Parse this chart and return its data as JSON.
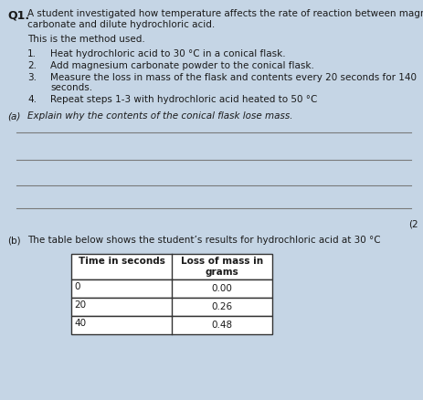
{
  "background_color": "#c5d5e5",
  "question_number": "Q1.",
  "intro_line1": "A student investigated how temperature affects the rate of reaction between magnesium",
  "intro_line2": "carbonate and dilute hydrochloric acid.",
  "method_header": "This is the method used.",
  "step1": "Heat hydrochloric acid to 30 °C in a conical flask.",
  "step2": "Add magnesium carbonate powder to the conical flask.",
  "step3a": "Measure the loss in mass of the flask and contents every 20 seconds for 140",
  "step3b": "seconds.",
  "step4": "Repeat steps 1-3 with hydrochloric acid heated to 50 °C",
  "part_a_label": "(a)",
  "part_a_text": "Explain why the contents of the conical flask lose mass.",
  "marks_label": "(2",
  "part_b_label": "(b)",
  "part_b_text": "The table below shows the student’s results for hydrochloric acid at 30 °C",
  "table_col1_header": "Time in seconds",
  "table_col2_header": "Loss of mass in\ngrams",
  "table_data": [
    [
      "0",
      "0.00"
    ],
    [
      "20",
      "0.26"
    ],
    [
      "40",
      "0.48"
    ]
  ],
  "text_color": "#1a1a1a",
  "line_color": "#7a7a7a",
  "font_size": 7.5,
  "font_size_bold": 8.0,
  "font_size_q": 9.0
}
